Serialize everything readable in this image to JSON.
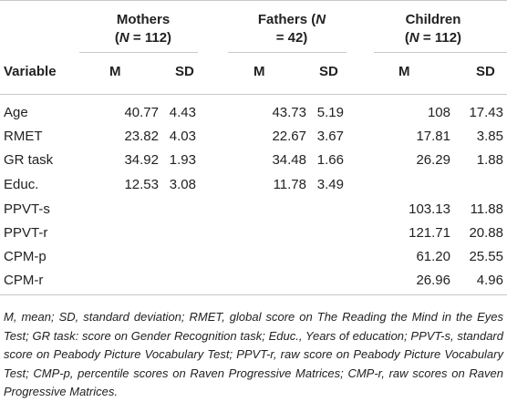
{
  "table": {
    "group_headers": {
      "mothers": {
        "line1": "Mothers",
        "line2_pre": "(",
        "line2_var": "N",
        "line2_post": " = 112)"
      },
      "fathers": {
        "line1_pre": "Fathers (",
        "line1_var": "N",
        "line2": "= 42)"
      },
      "children": {
        "line1": "Children",
        "line2_pre": "(",
        "line2_var": "N",
        "line2_post": " = 112)"
      }
    },
    "variable_header": "Variable",
    "stat_headers": [
      "M",
      "SD",
      "M",
      "SD",
      "M",
      "SD"
    ],
    "rows": [
      {
        "label": "Age",
        "values": [
          "40.77",
          "4.43",
          "43.73",
          "5.19",
          "108",
          "17.43"
        ]
      },
      {
        "label": "RMET",
        "values": [
          "23.82",
          "4.03",
          "22.67",
          "3.67",
          "17.81",
          "3.85"
        ]
      },
      {
        "label": "GR task",
        "values": [
          "34.92",
          "1.93",
          "34.48",
          "1.66",
          "26.29",
          "1.88"
        ]
      },
      {
        "label": "Educ.",
        "values": [
          "12.53",
          "3.08",
          "11.78",
          "3.49",
          "",
          ""
        ]
      },
      {
        "label": "PPVT-s",
        "values": [
          "",
          "",
          "",
          "",
          "103.13",
          "11.88"
        ]
      },
      {
        "label": "PPVT-r",
        "values": [
          "",
          "",
          "",
          "",
          "121.71",
          "20.88"
        ]
      },
      {
        "label": "CPM-p",
        "values": [
          "",
          "",
          "",
          "",
          "61.20",
          "25.55"
        ]
      },
      {
        "label": "CPM-r",
        "values": [
          "",
          "",
          "",
          "",
          "26.96",
          "4.96"
        ]
      }
    ],
    "footnote": "M, mean; SD, standard deviation; RMET, global score on The Reading the Mind in the Eyes Test; GR task: score on Gender Recognition task; Educ., Years of education; PPVT-s, standard score on Peabody Picture Vocabulary Test; PPVT-r, raw score on Peabody Picture Vocabulary Test; CMP-p, percentile scores on Raven Progressive Matrices; CMP-r, raw scores on Raven Progressive Matrices."
  }
}
